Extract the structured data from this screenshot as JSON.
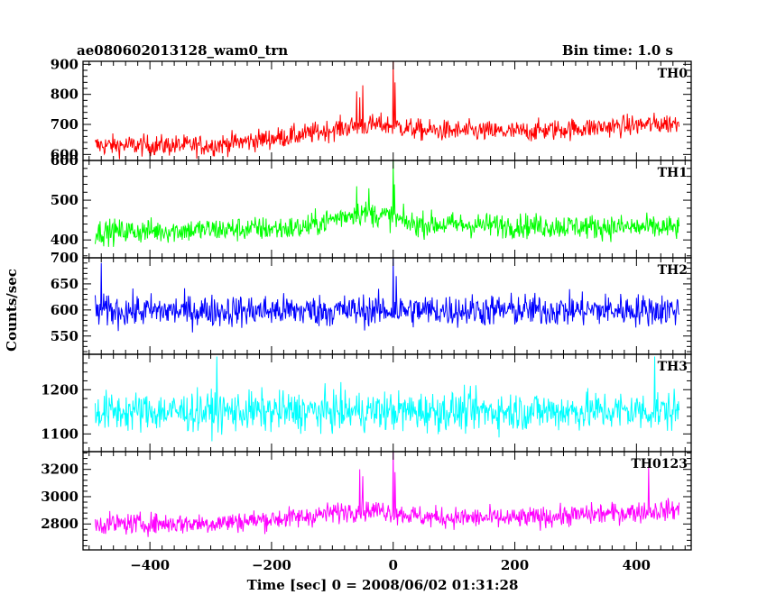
{
  "header": {
    "title": "ae080602013128_wam0_trn",
    "bin_time": "Bin time: 1.0 s"
  },
  "chart_data": {
    "type": "line",
    "xlabel": "Time [sec] 0 = 2008/06/02 01:31:28",
    "ylabel": "Counts/sec",
    "xlim": [
      -510,
      490
    ],
    "x_ticks": [
      -400,
      -200,
      0,
      200,
      400
    ],
    "x_tick_labels": [
      "−400",
      "−200",
      "0",
      "200",
      "400"
    ],
    "x_range_data": [
      -490,
      470
    ],
    "bin_time_s": 1.0,
    "panels": [
      {
        "name": "TH0",
        "color": "#ff0000",
        "ylim": [
          580,
          910
        ],
        "y_ticks": [
          600,
          700,
          800,
          900
        ],
        "y_tick_labels": [
          "600",
          "700",
          "800",
          "900"
        ],
        "baseline_points": [
          [
            -490,
            630
          ],
          [
            -300,
            630
          ],
          [
            -150,
            665
          ],
          [
            -80,
            690
          ],
          [
            -20,
            700
          ],
          [
            50,
            680
          ],
          [
            200,
            675
          ],
          [
            470,
            705
          ]
        ],
        "noise": 25,
        "spikes": [
          [
            -60,
            810
          ],
          [
            -55,
            790
          ],
          [
            -50,
            830
          ],
          [
            0,
            910
          ],
          [
            3,
            840
          ]
        ]
      },
      {
        "name": "TH1",
        "color": "#00ff00",
        "ylim": [
          355,
          600
        ],
        "y_ticks": [
          400,
          500,
          600
        ],
        "y_tick_labels": [
          "400",
          "500",
          "600"
        ],
        "baseline_points": [
          [
            -490,
            420
          ],
          [
            -150,
            430
          ],
          [
            -60,
            470
          ],
          [
            -10,
            460
          ],
          [
            30,
            440
          ],
          [
            470,
            430
          ]
        ],
        "noise": 22,
        "spikes": [
          [
            -60,
            535
          ],
          [
            -40,
            530
          ],
          [
            0,
            600
          ],
          [
            2,
            540
          ]
        ]
      },
      {
        "name": "TH2",
        "color": "#0000ff",
        "ylim": [
          515,
          700
        ],
        "y_ticks": [
          550,
          600,
          650,
          700
        ],
        "y_tick_labels": [
          "550",
          "600",
          "650",
          "700"
        ],
        "baseline_points": [
          [
            -490,
            598
          ],
          [
            470,
            600
          ]
        ],
        "noise": 22,
        "spikes": [
          [
            -480,
            690
          ],
          [
            0,
            700
          ],
          [
            5,
            665
          ]
        ]
      },
      {
        "name": "TH3",
        "color": "#00ffff",
        "ylim": [
          1060,
          1280
        ],
        "y_ticks": [
          1100,
          1200
        ],
        "y_tick_labels": [
          "1100",
          "1200"
        ],
        "baseline_points": [
          [
            -490,
            1150
          ],
          [
            470,
            1152
          ]
        ],
        "noise": 32,
        "spikes": [
          [
            -290,
            1275
          ],
          [
            430,
            1275
          ]
        ]
      },
      {
        "name": "TH0123",
        "color": "#ff00ff",
        "ylim": [
          2610,
          3330
        ],
        "y_ticks": [
          2800,
          3000,
          3200
        ],
        "y_tick_labels": [
          "2800",
          "3000",
          "3200"
        ],
        "baseline_points": [
          [
            -490,
            2800
          ],
          [
            -300,
            2805
          ],
          [
            -150,
            2850
          ],
          [
            -70,
            2900
          ],
          [
            -20,
            2900
          ],
          [
            50,
            2850
          ],
          [
            200,
            2840
          ],
          [
            470,
            2905
          ]
        ],
        "noise": 55,
        "spikes": [
          [
            -55,
            3200
          ],
          [
            -50,
            3150
          ],
          [
            0,
            3330
          ],
          [
            3,
            3180
          ],
          [
            420,
            3220
          ]
        ]
      }
    ]
  }
}
